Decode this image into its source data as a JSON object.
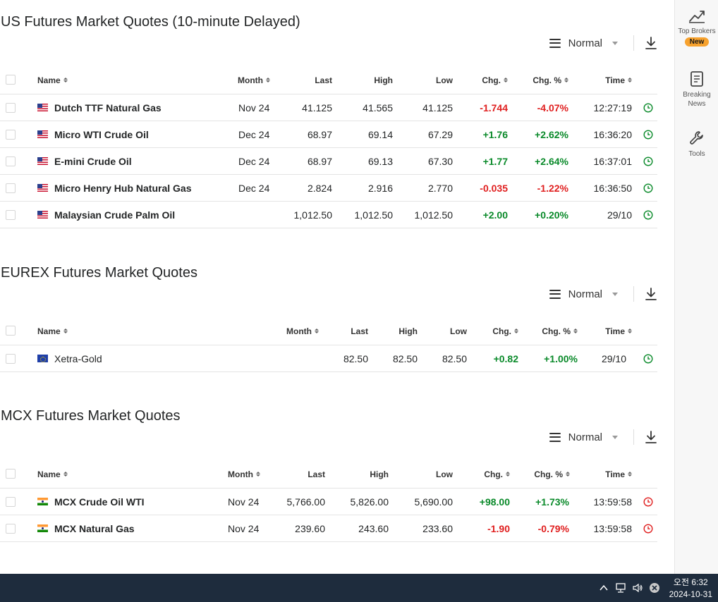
{
  "view_label": "Normal",
  "headers": {
    "name": "Name",
    "month": "Month",
    "last": "Last",
    "high": "High",
    "low": "Low",
    "chg": "Chg.",
    "chg_pct": "Chg. %",
    "time": "Time"
  },
  "sections": [
    {
      "title": "US Futures Market Quotes (10-minute Delayed)",
      "rows": [
        {
          "flag": "us-flag",
          "name": "Dutch TTF Natural Gas",
          "month": "Nov 24",
          "last": "41.125",
          "high": "41.565",
          "low": "41.125",
          "chg": "-1.744",
          "chg_pct": "-4.07%",
          "time": "12:27:19",
          "direction": "down",
          "clock_color": "#0a8a2a"
        },
        {
          "flag": "us-flag",
          "name": "Micro WTI Crude Oil",
          "month": "Dec 24",
          "last": "68.97",
          "high": "69.14",
          "low": "67.29",
          "chg": "+1.76",
          "chg_pct": "+2.62%",
          "time": "16:36:20",
          "direction": "up",
          "clock_color": "#0a8a2a"
        },
        {
          "flag": "us-flag",
          "name": "E-mini Crude Oil",
          "month": "Dec 24",
          "last": "68.97",
          "high": "69.13",
          "low": "67.30",
          "chg": "+1.77",
          "chg_pct": "+2.64%",
          "time": "16:37:01",
          "direction": "up",
          "clock_color": "#0a8a2a"
        },
        {
          "flag": "us-flag",
          "name": "Micro Henry Hub Natural Gas",
          "month": "Dec 24",
          "last": "2.824",
          "high": "2.916",
          "low": "2.770",
          "chg": "-0.035",
          "chg_pct": "-1.22%",
          "time": "16:36:50",
          "direction": "down",
          "clock_color": "#0a8a2a"
        },
        {
          "flag": "us-flag",
          "name": "Malaysian Crude Palm Oil",
          "month": "",
          "last": "1,012.50",
          "high": "1,012.50",
          "low": "1,012.50",
          "chg": "+2.00",
          "chg_pct": "+0.20%",
          "time": "29/10",
          "direction": "up",
          "clock_color": "#0a8a2a"
        }
      ]
    },
    {
      "title": "EUREX Futures Market Quotes",
      "rows": [
        {
          "flag": "eu-flag",
          "name": "Xetra-Gold",
          "month": "",
          "last": "82.50",
          "high": "82.50",
          "low": "82.50",
          "chg": "+0.82",
          "chg_pct": "+1.00%",
          "time": "29/10",
          "direction": "up",
          "clock_color": "#0a8a2a"
        }
      ]
    },
    {
      "title": "MCX Futures Market Quotes",
      "rows": [
        {
          "flag": "india-flag",
          "name": "MCX Crude Oil WTI",
          "month": "Nov 24",
          "last": "5,766.00",
          "high": "5,826.00",
          "low": "5,690.00",
          "chg": "+98.00",
          "chg_pct": "+1.73%",
          "time": "13:59:58",
          "direction": "up",
          "clock_color": "#e02020"
        },
        {
          "flag": "india-flag",
          "name": "MCX Natural Gas",
          "month": "Nov 24",
          "last": "239.60",
          "high": "243.60",
          "low": "233.60",
          "chg": "-1.90",
          "chg_pct": "-0.79%",
          "time": "13:59:58",
          "direction": "down",
          "clock_color": "#e02020"
        }
      ]
    }
  ],
  "sidebar": {
    "items": [
      {
        "icon": "trend-chart-icon",
        "label": "Top Brokers",
        "badge": "New"
      },
      {
        "icon": "news-icon",
        "label_line1": "Breaking",
        "label_line2": "News"
      },
      {
        "icon": "wrench-icon",
        "label": "Tools"
      }
    ]
  },
  "taskbar": {
    "time": "오전 6:32",
    "date": "2024-10-31",
    "tray_icons": [
      "chevron-up-icon",
      "network-icon",
      "volume-icon",
      "close-circle-icon"
    ]
  },
  "colors": {
    "positive": "#0a8a2a",
    "negative": "#e02020",
    "taskbar": "#1e2c3d",
    "badge": "#f7a22e"
  }
}
